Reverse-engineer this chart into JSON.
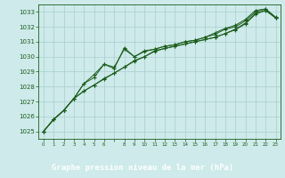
{
  "title": "Graphe pression niveau de la mer (hPa)",
  "bg_color": "#ceeaea",
  "grid_color": "#aacece",
  "line_color": "#1a5c1a",
  "title_bg": "#1a5c1a",
  "title_fg": "#ffffff",
  "xlim": [
    -0.5,
    23.5
  ],
  "ylim": [
    1024.5,
    1033.5
  ],
  "yticks": [
    1025,
    1026,
    1027,
    1028,
    1029,
    1030,
    1031,
    1032,
    1033
  ],
  "xtick_labels": [
    "0",
    "1",
    "2",
    "3",
    "4",
    "5",
    "6",
    "",
    "8",
    "9",
    "10",
    "11",
    "12",
    "13",
    "14",
    "15",
    "16",
    "17",
    "18",
    "19",
    "20",
    "21",
    "22",
    "23"
  ],
  "series": [
    [
      1025.0,
      1025.8,
      1026.4,
      1027.2,
      1027.7,
      1028.1,
      1028.5,
      1028.9,
      1029.3,
      1029.7,
      1030.0,
      1030.35,
      1030.55,
      1030.7,
      1030.85,
      1031.0,
      1031.15,
      1031.3,
      1031.55,
      1031.8,
      1032.2,
      1032.85,
      1033.1,
      1032.6
    ],
    [
      1025.0,
      1025.8,
      1026.4,
      1027.2,
      1027.7,
      1028.1,
      1028.55,
      1028.9,
      1029.3,
      1029.75,
      1030.0,
      1030.4,
      1030.55,
      1030.7,
      1030.85,
      1031.0,
      1031.15,
      1031.3,
      1031.55,
      1031.85,
      1032.25,
      1032.9,
      1033.1,
      1032.6
    ],
    [
      1025.0,
      1025.8,
      1026.4,
      1027.2,
      1028.2,
      1028.6,
      1029.5,
      1029.3,
      1030.5,
      1030.0,
      1030.35,
      1030.5,
      1030.7,
      1030.8,
      1031.0,
      1031.1,
      1031.3,
      1031.5,
      1031.85,
      1032.0,
      1032.4,
      1033.0,
      1033.2,
      1032.6
    ],
    [
      1025.0,
      1025.8,
      1026.4,
      1027.2,
      1028.2,
      1028.8,
      1029.5,
      1029.2,
      1030.6,
      1030.0,
      1030.4,
      1030.5,
      1030.7,
      1030.8,
      1031.0,
      1031.1,
      1031.3,
      1031.6,
      1031.9,
      1032.1,
      1032.5,
      1033.1,
      1033.2,
      1032.65
    ]
  ]
}
